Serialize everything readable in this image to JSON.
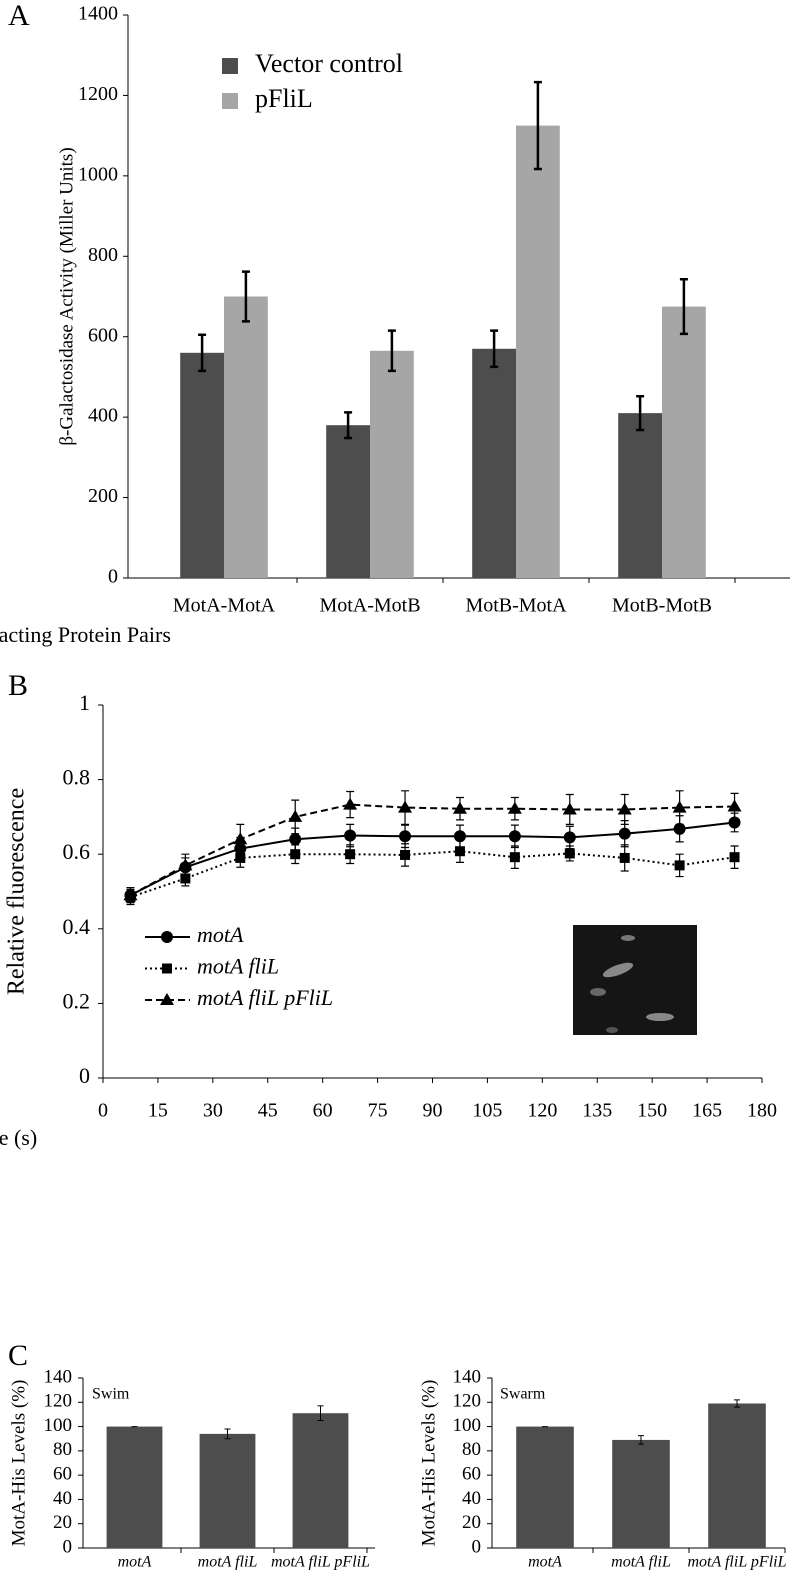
{
  "chart_data": [
    {
      "type": "bar",
      "panel_label": "A",
      "ylabel": "β-Galactosidase Activity (Miller Units)",
      "xlabel": "Interacting Protein Pairs",
      "categories": [
        "MotA-MotA",
        "MotA-MotB",
        "MotB-MotA",
        "MotB-MotB"
      ],
      "series": [
        {
          "name": "Vector control",
          "color": "#4d4d4d",
          "values": [
            560,
            380,
            570,
            410
          ],
          "errors": [
            45,
            32,
            45,
            42
          ]
        },
        {
          "name": "pFliL",
          "color": "#a6a6a6",
          "values": [
            700,
            565,
            1125,
            675
          ],
          "errors": [
            62,
            50,
            108,
            68
          ]
        }
      ],
      "ylim": [
        0,
        1400
      ],
      "yticks": [
        0,
        200,
        400,
        600,
        800,
        1000,
        1200,
        1400
      ],
      "legend": "upper left"
    },
    {
      "type": "line",
      "panel_label": "B",
      "xlabel": "Time (s)",
      "ylabel": "Relative fluorescence",
      "x": [
        7.5,
        22.5,
        37.5,
        52.5,
        67.5,
        82.5,
        97.5,
        112.5,
        127.5,
        142.5,
        157.5,
        172.5
      ],
      "series": [
        {
          "name": "motA",
          "color": "#000000",
          "line_style": "solid",
          "marker": "circle",
          "values": [
            0.49,
            0.565,
            0.615,
            0.64,
            0.65,
            0.648,
            0.648,
            0.648,
            0.645,
            0.655,
            0.668,
            0.685
          ],
          "errors": [
            0.02,
            0.025,
            0.03,
            0.03,
            0.03,
            0.03,
            0.03,
            0.03,
            0.03,
            0.035,
            0.035,
            0.025
          ]
        },
        {
          "name": "motA fliL",
          "color": "#000000",
          "line_style": "dotted",
          "marker": "square",
          "values": [
            0.485,
            0.535,
            0.59,
            0.6,
            0.6,
            0.598,
            0.608,
            0.592,
            0.602,
            0.59,
            0.57,
            0.592
          ],
          "errors": [
            0.02,
            0.02,
            0.025,
            0.025,
            0.025,
            0.03,
            0.03,
            0.03,
            0.02,
            0.035,
            0.03,
            0.03
          ]
        },
        {
          "name": "motA fliL pFliL",
          "color": "#000000",
          "line_style": "dashed",
          "marker": "triangle",
          "values": [
            0.49,
            0.57,
            0.64,
            0.7,
            0.733,
            0.725,
            0.722,
            0.722,
            0.72,
            0.72,
            0.725,
            0.728
          ],
          "errors": [
            0.02,
            0.03,
            0.04,
            0.045,
            0.035,
            0.045,
            0.03,
            0.03,
            0.04,
            0.04,
            0.045,
            0.035
          ]
        }
      ],
      "xlim": [
        0,
        180
      ],
      "xticks": [
        0,
        15,
        30,
        45,
        60,
        75,
        90,
        105,
        120,
        135,
        150,
        165,
        180
      ],
      "ylim": [
        0,
        1
      ],
      "yticks": [
        0,
        0.2,
        0.4,
        0.6,
        0.8,
        1
      ],
      "legend": "lower left"
    },
    {
      "type": "bar",
      "panel_label": "C",
      "annotation": "Swim",
      "ylabel": "MotA-His Levels (%)",
      "categories": [
        "motA",
        "motA fliL",
        "motA fliL pFliL"
      ],
      "series": [
        {
          "color": "#4d4d4d",
          "values": [
            100,
            94,
            111
          ],
          "errors": [
            0,
            4,
            6
          ]
        }
      ],
      "ylim": [
        0,
        140
      ],
      "yticks": [
        0,
        20,
        40,
        60,
        80,
        100,
        120,
        140
      ]
    },
    {
      "type": "bar",
      "annotation": "Swarm",
      "ylabel": "MotA-His Levels (%)",
      "categories": [
        "motA",
        "motA fliL",
        "motA fliL pFliL"
      ],
      "series": [
        {
          "color": "#4d4d4d",
          "values": [
            100,
            89,
            119
          ],
          "errors": [
            0,
            3.5,
            3
          ]
        }
      ],
      "ylim": [
        0,
        140
      ],
      "yticks": [
        0,
        20,
        40,
        60,
        80,
        100,
        120,
        140
      ]
    }
  ]
}
